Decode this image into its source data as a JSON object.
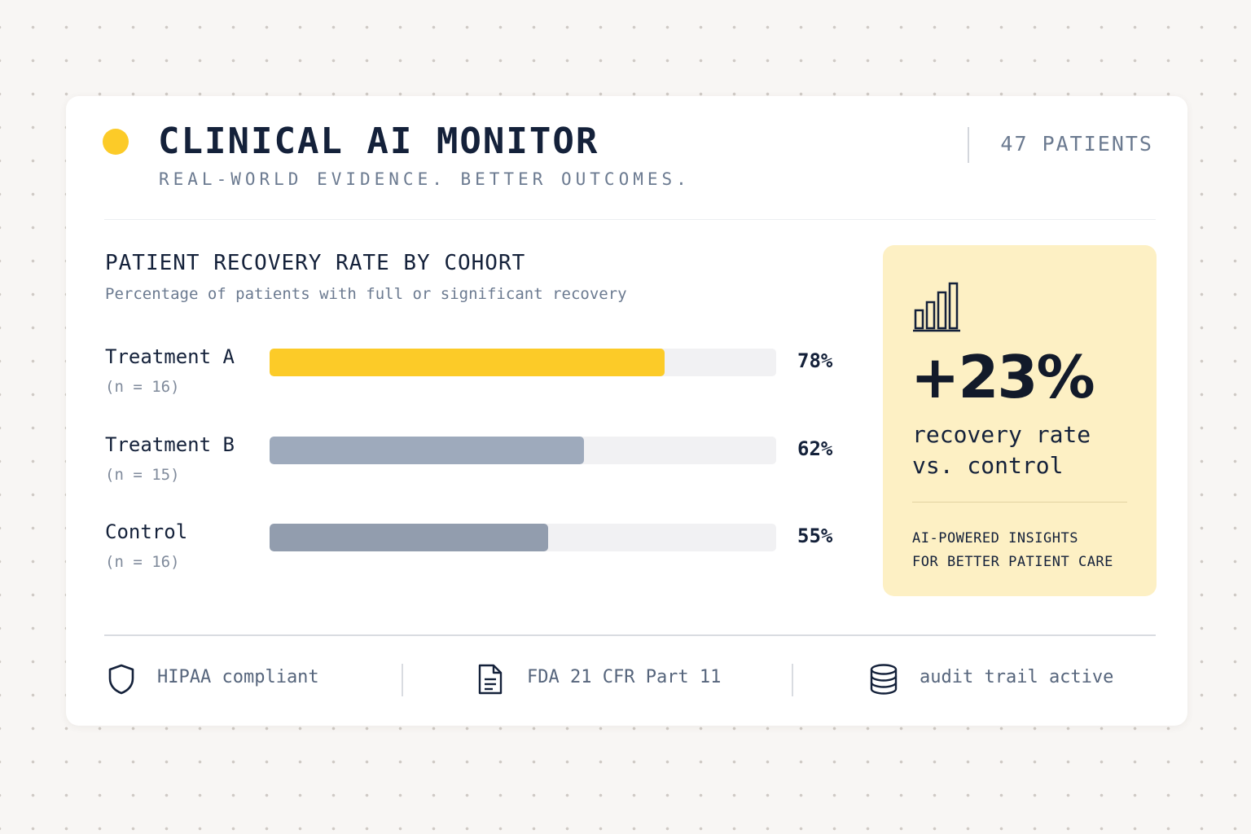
{
  "header": {
    "title": "CLINICAL AI MONITOR",
    "subtitle": "REAL-WORLD EVIDENCE. BETTER OUTCOMES.",
    "patient_count": "47 PATIENTS"
  },
  "chart": {
    "title": "PATIENT RECOVERY RATE BY COHORT",
    "subtitle": "Percentage of patients with full or significant recovery",
    "rows": [
      {
        "label": "Treatment A",
        "n": "(n = 16)",
        "value_label": "78%"
      },
      {
        "label": "Treatment B",
        "n": "(n = 15)",
        "value_label": "62%"
      },
      {
        "label": "Control",
        "n": "(n = 16)",
        "value_label": "55%"
      }
    ]
  },
  "chart_data": {
    "type": "bar",
    "orientation": "horizontal",
    "title": "PATIENT RECOVERY RATE BY COHORT",
    "subtitle": "Percentage of patients with full or significant recovery",
    "categories": [
      "Treatment A",
      "Treatment B",
      "Control"
    ],
    "values": [
      78,
      62,
      55
    ],
    "xlim": [
      0,
      100
    ],
    "colors": [
      "#fccb28",
      "#9eaabc",
      "#929dae"
    ]
  },
  "insight": {
    "icon": "bar-chart-icon",
    "stat": "+23%",
    "caption_line1": "recovery rate",
    "caption_line2": "vs. control",
    "note_line1": "AI-POWERED INSIGHTS",
    "note_line2": "FOR BETTER PATIENT CARE"
  },
  "footer": {
    "items": [
      {
        "icon": "shield-icon",
        "label": "HIPAA compliant"
      },
      {
        "icon": "document-icon",
        "label": "FDA 21 CFR Part 11"
      },
      {
        "icon": "database-icon",
        "label": "audit trail active"
      }
    ]
  },
  "colors": {
    "accent": "#fccb28",
    "ink": "#14213a",
    "muted": "#6b7a90",
    "insight_background": "#fdf0c4"
  }
}
